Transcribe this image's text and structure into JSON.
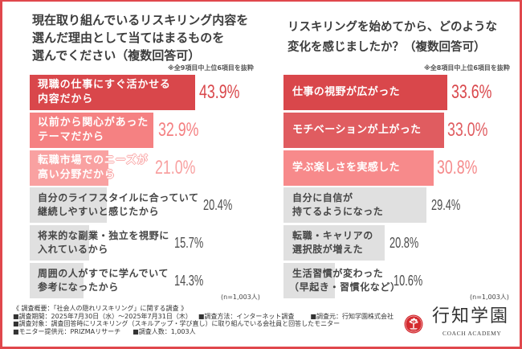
{
  "left_panel": {
    "title_lines": [
      "現在取り組んでいるリスキリング内容を",
      "選んだ理由として当てはまるものを",
      "選んでください（複数回答可）"
    ],
    "note": "※全9項目中上位6項目を抜粋",
    "sample_size": "(n=1,003人)",
    "items": [
      {
        "label_lines": [
          "現職の仕事にすぐ活かせる",
          "内容だから"
        ],
        "value_label": "43.9%"
      },
      {
        "label_lines": [
          "以前から関心があった",
          "テーマだから"
        ],
        "value_label": "32.9%"
      },
      {
        "label_lines": [
          "転職市場でのニーズが",
          "高い分野だから"
        ],
        "value_label": "21.0%"
      },
      {
        "label_lines": [
          "自分のライフスタイルに合っていて",
          "継続しやすいと感じたから"
        ],
        "value_label": "20.4%"
      },
      {
        "label_lines": [
          "将来的な副業・独立を視野に",
          "入れているから"
        ],
        "value_label": "15.7%"
      },
      {
        "label_lines": [
          "周囲の人がすでに学んでいて",
          "参考になったから"
        ],
        "value_label": "14.3%"
      }
    ]
  },
  "right_panel": {
    "title_lines": [
      "リスキリングを始めてから、どのような",
      "変化を感じましたか？（複数回答可）"
    ],
    "note": "※全8項目中上位6項目を抜粋",
    "sample_size": "(n=1,003人)",
    "items": [
      {
        "label_lines": [
          "仕事の視野が広がった"
        ],
        "value_label": "33.6%"
      },
      {
        "label_lines": [
          "モチベーションが上がった"
        ],
        "value_label": "33.0%"
      },
      {
        "label_lines": [
          "学ぶ楽しさを実感した"
        ],
        "value_label": "30.8%"
      },
      {
        "label_lines": [
          "自分に自信が",
          "持てるようになった"
        ],
        "value_label": "29.4%"
      },
      {
        "label_lines": [
          "転職・キャリアの",
          "選択肢が増えた"
        ],
        "value_label": "20.8%"
      },
      {
        "label_lines": [
          "生活習慣が変わった",
          "（早起き・習慣化など）"
        ],
        "value_label": "10.6%"
      }
    ]
  },
  "footer": {
    "title": "《 調査概要：「社会人の隠れリスキリング」に関する調査 》",
    "lines": [
      [
        "■調査期間：2025年7月30日（水）～2025年7月31日（木）",
        "■調査方法：インターネット調査",
        "■調査元：行知学園株式会社"
      ],
      [
        "■調査対象：調査回答時にリスキリング（スキルアップ・学び直し）に取り組んでいる会社員と回答したモニター"
      ],
      [
        "■モニター提供元：PRIZMAリサーチ",
        "■調査人数：1,003人"
      ]
    ]
  },
  "logo": {
    "name": "行知学園",
    "subtitle": "COACH ACADEMY",
    "icon": "tree-emblem-icon"
  },
  "colors": {
    "frame": "#e0474c",
    "left_bars": [
      "#d9474b",
      "#f58182",
      "#f9a1a1",
      "#e0e0e0",
      "#e0e0e0",
      "#e0e0e0"
    ],
    "left_values": [
      "#d9474b",
      "#f47f81",
      "#f8a0a0",
      "#4d4d4d",
      "#4d4d4d",
      "#4d4d4d"
    ],
    "right_bars": [
      "#d9474b",
      "#e05c60",
      "#f78a8b",
      "#e0e0e0",
      "#e0e0e0",
      "#e0e0e0"
    ],
    "right_values": [
      "#d9474b",
      "#e05c60",
      "#f58a8b",
      "#4d4d4d",
      "#4d4d4d",
      "#4d4d4d"
    ],
    "logo_red": "#d42a2f"
  },
  "chart_data": [
    {
      "type": "bar",
      "orientation": "horizontal",
      "title": "現在取り組んでいるリスキリング内容を選んだ理由として当てはまるものを選んでください（複数回答可）",
      "subtitle": "※全9項目中上位6項目を抜粋",
      "categories": [
        "現職の仕事にすぐ活かせる内容だから",
        "以前から関心があったテーマだから",
        "転職市場でのニーズが高い分野だから",
        "自分のライフスタイルに合っていて継続しやすいと感じたから",
        "将来的な副業・独立を視野に入れているから",
        "周囲の人がすでに学んでいて参考になったから"
      ],
      "values": [
        43.9,
        32.9,
        21.0,
        20.4,
        15.7,
        14.3
      ],
      "unit": "%",
      "annotation": "(n=1,003人)",
      "xlabel": "",
      "ylabel": "",
      "grid": false,
      "legend": "none"
    },
    {
      "type": "bar",
      "orientation": "horizontal",
      "title": "リスキリングを始めてから、どのような変化を感じましたか？（複数回答可）",
      "subtitle": "※全8項目中上位6項目を抜粋",
      "categories": [
        "仕事の視野が広がった",
        "モチベーションが上がった",
        "学ぶ楽しさを実感した",
        "自分に自信が持てるようになった",
        "転職・キャリアの選択肢が増えた",
        "生活習慣が変わった（早起き・習慣化など）"
      ],
      "values": [
        33.6,
        33.0,
        30.8,
        29.4,
        20.8,
        10.6
      ],
      "unit": "%",
      "annotation": "(n=1,003人)",
      "xlabel": "",
      "ylabel": "",
      "grid": false,
      "legend": "none"
    }
  ]
}
